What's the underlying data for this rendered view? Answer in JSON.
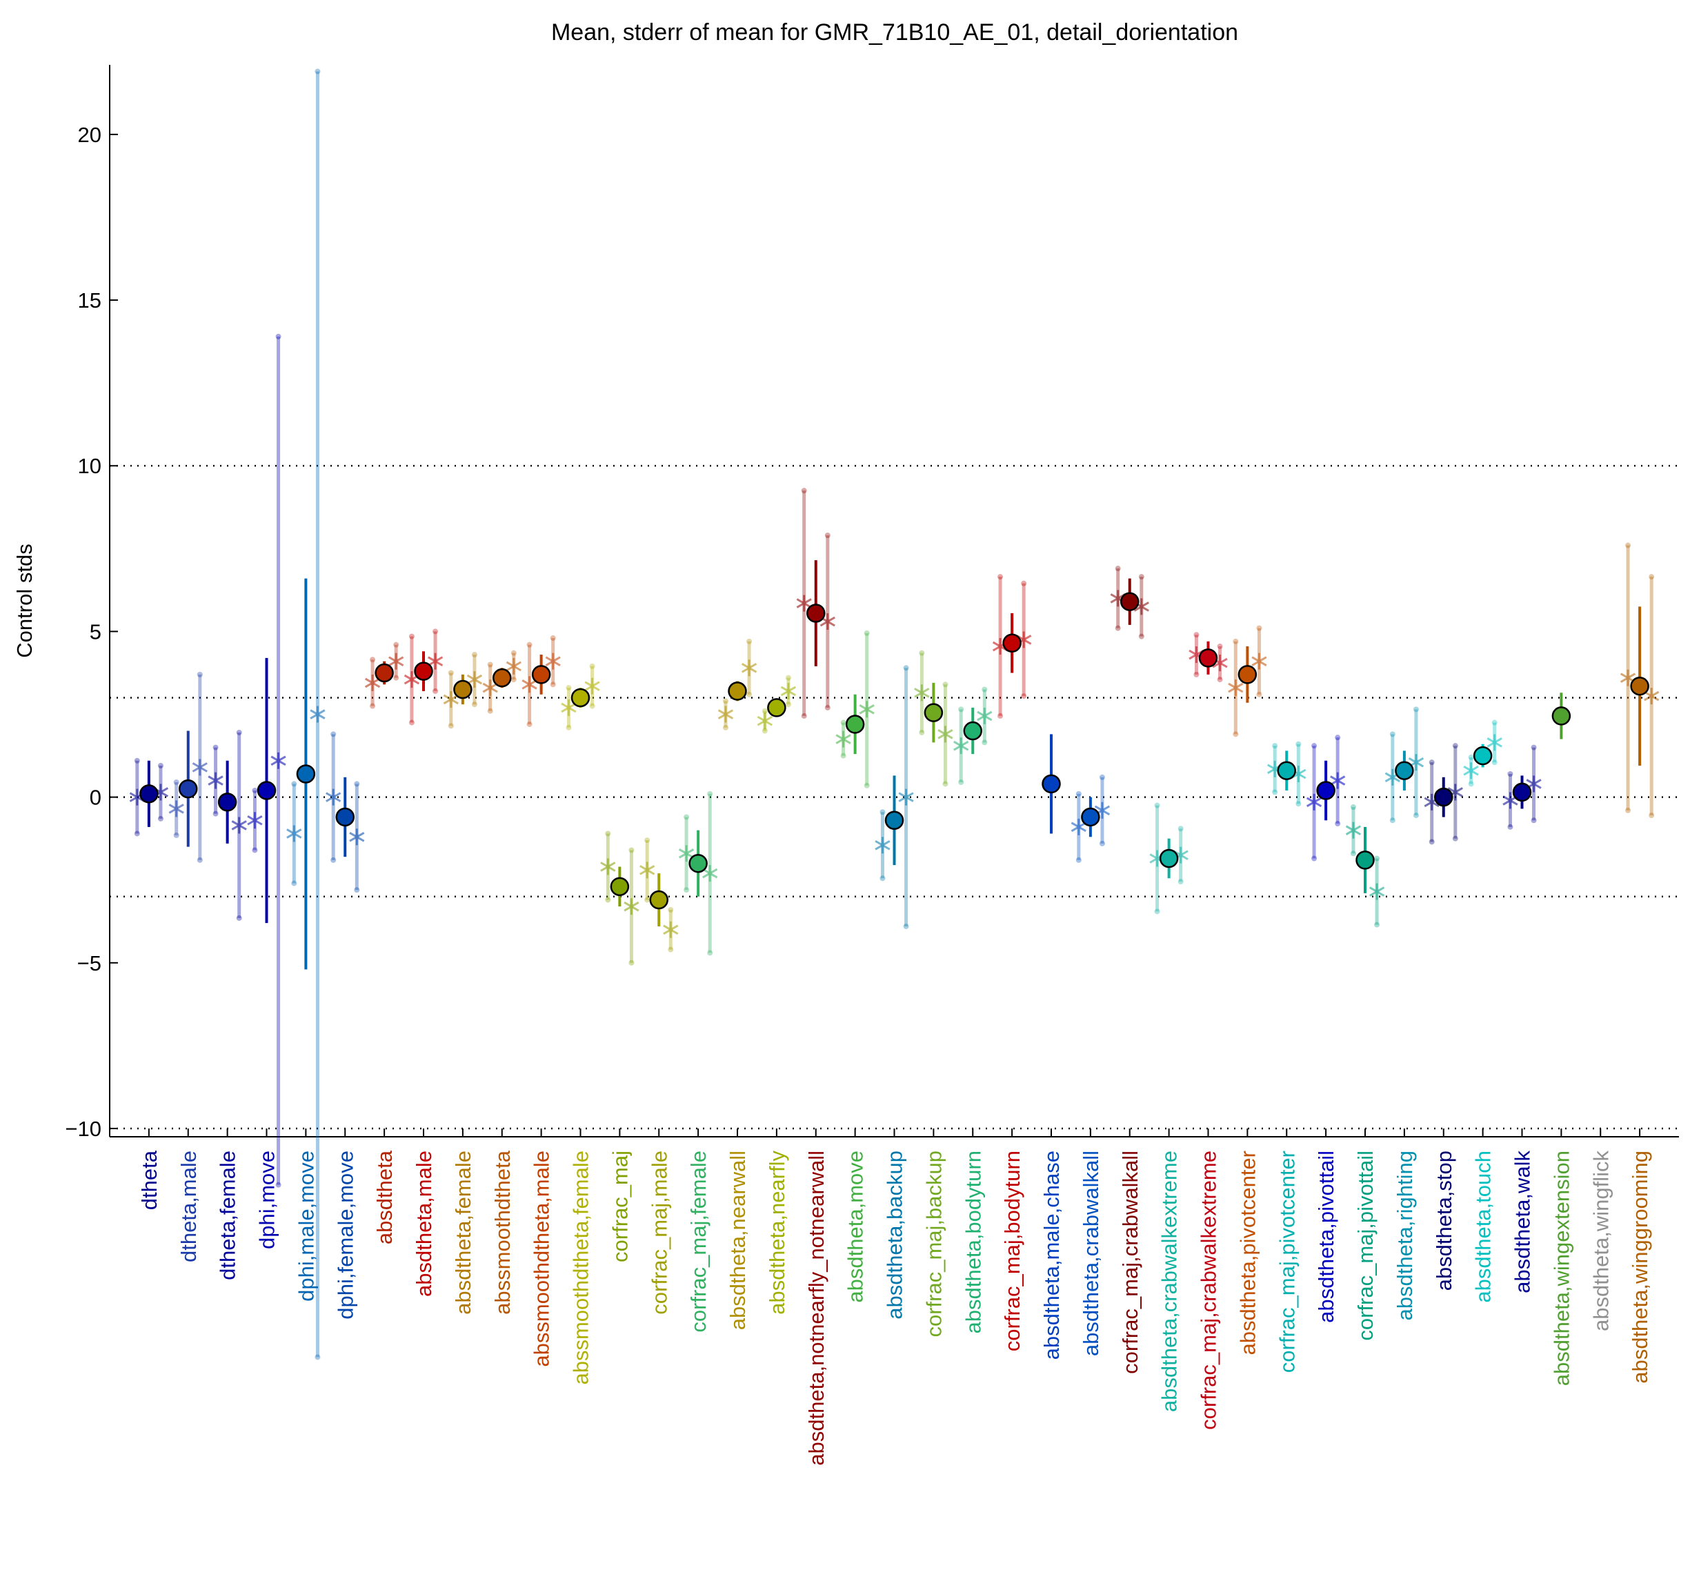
{
  "chart_data": {
    "type": "errorbar",
    "title": "Mean, stderr of mean for GMR_71B10_AE_01, detail_dorientation",
    "ylabel": "Control stds",
    "categories": [
      "dtheta",
      "dtheta,male",
      "dtheta,female",
      "dphi,move",
      "dphi,male,move",
      "dphi,female,move",
      "absdtheta",
      "absdtheta,male",
      "absdtheta,female",
      "abssmoothdtheta",
      "abssmoothdtheta,male",
      "abssmoothdtheta,female",
      "corfrac_maj",
      "corfrac_maj,male",
      "corfrac_maj,female",
      "absdtheta,nearwall",
      "absdtheta,nearfly",
      "absdtheta,notnearfly_notnearwall",
      "absdtheta,move",
      "absdtheta,backup",
      "corfrac_maj,backup",
      "absdtheta,bodyturn",
      "corfrac_maj,bodyturn",
      "absdtheta,male,chase",
      "absdtheta,crabwalkall",
      "corfrac_maj,crabwalkall",
      "absdtheta,crabwalkextreme",
      "corfrac_maj,crabwalkextreme",
      "absdtheta,pivotcenter",
      "corfrac_maj,pivotcenter",
      "absdtheta,pivottail",
      "corfrac_maj,pivottail",
      "absdtheta,righting",
      "absdtheta,stop",
      "absdtheta,touch",
      "absdtheta,walk",
      "absdtheta,wingextension",
      "absdtheta,wingflick",
      "absdtheta,winggrooming"
    ],
    "colors": [
      "#00008f",
      "#1a3aa8",
      "#00009a",
      "#0000b0",
      "#0066b3",
      "#0044aa",
      "#b22200",
      "#c00000",
      "#b07800",
      "#b85500",
      "#c04000",
      "#b0b000",
      "#80a000",
      "#a0a000",
      "#30b060",
      "#b09000",
      "#a0b000",
      "#900000",
      "#40b040",
      "#0077aa",
      "#70a820",
      "#20b070",
      "#c00000",
      "#0040c0",
      "#0050c0",
      "#800000",
      "#10b0a0",
      "#c00010",
      "#c05000",
      "#00b0b0",
      "#0000c0",
      "#00a080",
      "#0090b0",
      "#000070",
      "#00c0c0",
      "#000090",
      "#50a030",
      "#909090",
      "#b06000"
    ],
    "means": [
      0.1,
      0.25,
      -0.15,
      0.2,
      0.7,
      -0.6,
      3.75,
      3.8,
      3.25,
      3.6,
      3.7,
      3.0,
      -2.7,
      -3.1,
      -2.0,
      3.2,
      2.7,
      5.55,
      2.2,
      -0.7,
      2.55,
      2.0,
      4.65,
      0.4,
      -0.6,
      5.9,
      -1.85,
      4.2,
      3.7,
      0.8,
      0.2,
      -1.9,
      0.8,
      0.0,
      1.25,
      0.15,
      2.45,
      null,
      3.35
    ],
    "errors": [
      1.0,
      1.75,
      1.25,
      4.0,
      5.9,
      1.2,
      0.35,
      0.6,
      0.45,
      0.3,
      0.6,
      0.3,
      0.6,
      0.8,
      1.0,
      0.3,
      0.25,
      1.6,
      0.9,
      1.35,
      0.9,
      0.7,
      0.9,
      1.5,
      0.6,
      0.7,
      0.6,
      0.5,
      0.85,
      0.6,
      0.9,
      1.0,
      0.6,
      0.6,
      0.35,
      0.5,
      0.7,
      null,
      2.4
    ],
    "left_values": [
      0.0,
      -0.35,
      0.5,
      -0.7,
      -1.1,
      0.0,
      3.45,
      3.55,
      2.95,
      3.3,
      3.4,
      2.7,
      -2.1,
      -2.2,
      -1.7,
      2.5,
      2.3,
      5.85,
      1.75,
      -1.45,
      3.15,
      1.55,
      4.55,
      null,
      -0.9,
      6.0,
      -1.85,
      4.3,
      3.3,
      0.85,
      -0.15,
      -1.0,
      0.6,
      -0.15,
      0.8,
      -0.1,
      null,
      null,
      3.6
    ],
    "left_errors": [
      1.1,
      0.8,
      1.0,
      0.9,
      1.5,
      1.9,
      0.7,
      1.3,
      0.8,
      0.7,
      1.2,
      0.6,
      1.0,
      0.9,
      1.1,
      0.4,
      0.3,
      3.4,
      0.5,
      1.0,
      1.2,
      1.1,
      2.1,
      null,
      1.0,
      0.9,
      1.6,
      0.6,
      1.4,
      0.7,
      1.7,
      0.7,
      1.3,
      1.2,
      0.4,
      0.8,
      null,
      null,
      4.0
    ],
    "right_values": [
      0.15,
      0.9,
      -0.85,
      1.1,
      2.5,
      -1.2,
      4.1,
      4.1,
      3.55,
      3.95,
      4.1,
      3.35,
      -3.3,
      -4.0,
      -2.3,
      3.9,
      3.2,
      5.3,
      2.65,
      0.0,
      1.9,
      2.45,
      4.75,
      null,
      -0.4,
      5.75,
      -1.75,
      4.05,
      4.1,
      0.7,
      0.5,
      -2.85,
      1.05,
      0.15,
      1.65,
      0.4,
      null,
      null,
      3.05
    ],
    "right_errors": [
      0.8,
      2.8,
      2.8,
      12.8,
      19.4,
      1.6,
      0.5,
      0.9,
      0.75,
      0.4,
      0.7,
      0.6,
      1.7,
      0.6,
      2.4,
      0.8,
      0.4,
      2.6,
      2.3,
      3.9,
      1.5,
      0.8,
      1.7,
      null,
      1.0,
      0.9,
      0.8,
      0.5,
      1.0,
      0.9,
      1.3,
      1.0,
      1.6,
      1.4,
      0.6,
      1.1,
      null,
      null,
      3.6
    ],
    "ylim": [
      -10.25,
      22.1
    ],
    "yticks": [
      {
        "value": -10,
        "label": "−10"
      },
      {
        "value": -5,
        "label": "−5"
      },
      0,
      5,
      10,
      15,
      20
    ],
    "reference_lines": [
      -10,
      -3,
      0,
      3,
      10
    ]
  }
}
